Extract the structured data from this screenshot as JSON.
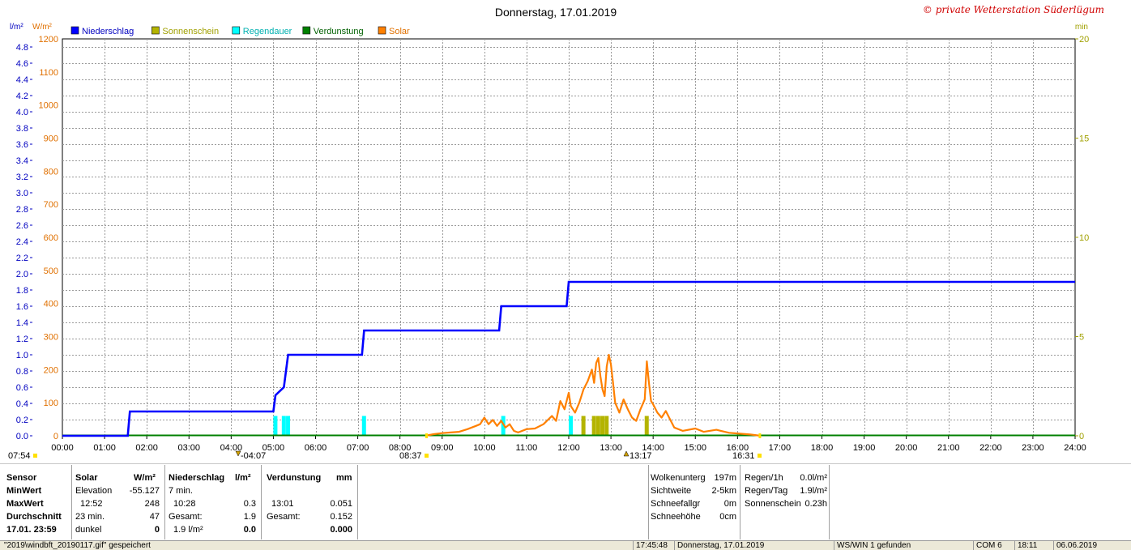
{
  "title": "Donnerstag, 17.01.2019",
  "copyright": "© private Wetterstation Süderlügum",
  "unit_left1": "l/m²",
  "unit_left2": "W/m²",
  "unit_right": "min",
  "legend": [
    {
      "label": "Niederschlag",
      "color": "#0000ff",
      "text_color": "#0000c0"
    },
    {
      "label": "Sonnenschein",
      "color": "#b4b400",
      "text_color": "#a0a000"
    },
    {
      "label": "Regendauer",
      "color": "#00ffff",
      "text_color": "#00b0b0"
    },
    {
      "label": "Verdunstung",
      "color": "#008000",
      "text_color": "#006000"
    },
    {
      "label": "Solar",
      "color": "#ff8000",
      "text_color": "#e07000"
    }
  ],
  "chart_data": {
    "type": "line",
    "x_range": [
      "00:00",
      "24:00"
    ],
    "x_ticks": [
      "00:00",
      "01:00",
      "02:00",
      "03:00",
      "04:00",
      "05:00",
      "06:00",
      "07:00",
      "08:00",
      "09:00",
      "10:00",
      "11:00",
      "12:00",
      "13:00",
      "14:00",
      "15:00",
      "16:00",
      "17:00",
      "18:00",
      "19:00",
      "20:00",
      "21:00",
      "22:00",
      "23:00",
      "24:00"
    ],
    "y_left_rain": {
      "label": "l/m²",
      "range": [
        0,
        4.9
      ],
      "ticks": [
        "0.0",
        "0.2",
        "0.4",
        "0.6",
        "0.8",
        "1.0",
        "1.2",
        "1.4",
        "1.6",
        "1.8",
        "2.0",
        "2.2",
        "2.4",
        "2.6",
        "2.8",
        "3.0",
        "3.2",
        "3.4",
        "3.6",
        "3.8",
        "4.0",
        "4.2",
        "4.4",
        "4.6",
        "4.8"
      ]
    },
    "y_left_solar": {
      "label": "W/m²",
      "range": [
        0,
        1200
      ],
      "ticks": [
        "0",
        "100",
        "200",
        "300",
        "400",
        "500",
        "600",
        "700",
        "800",
        "900",
        "1000",
        "1100",
        "1200"
      ]
    },
    "y_right": {
      "label": "min",
      "range": [
        0,
        20
      ],
      "ticks": [
        "0",
        "5",
        "10",
        "15",
        "20"
      ]
    },
    "grid": true,
    "legend_position": "top-left",
    "series": [
      {
        "name": "Niederschlag",
        "color": "#0000ff",
        "points": [
          [
            0,
            0
          ],
          [
            1.55,
            0
          ],
          [
            1.6,
            0.3
          ],
          [
            5.0,
            0.3
          ],
          [
            5.05,
            0.5
          ],
          [
            5.25,
            0.6
          ],
          [
            5.3,
            0.8
          ],
          [
            5.35,
            1.0
          ],
          [
            5.45,
            1.0
          ],
          [
            7.1,
            1.0
          ],
          [
            7.15,
            1.3
          ],
          [
            10.35,
            1.3
          ],
          [
            10.4,
            1.6
          ],
          [
            11.95,
            1.6
          ],
          [
            12.0,
            1.9
          ],
          [
            24,
            1.9
          ]
        ]
      },
      {
        "name": "Solar",
        "color": "#ff8000",
        "points": [
          [
            8.6,
            0
          ],
          [
            8.8,
            5
          ],
          [
            9.0,
            8
          ],
          [
            9.2,
            10
          ],
          [
            9.4,
            12
          ],
          [
            9.6,
            20
          ],
          [
            9.8,
            30
          ],
          [
            9.9,
            35
          ],
          [
            10.0,
            55
          ],
          [
            10.1,
            35
          ],
          [
            10.2,
            48
          ],
          [
            10.3,
            30
          ],
          [
            10.4,
            45
          ],
          [
            10.5,
            25
          ],
          [
            10.6,
            35
          ],
          [
            10.7,
            15
          ],
          [
            10.8,
            10
          ],
          [
            11.0,
            20
          ],
          [
            11.2,
            22
          ],
          [
            11.4,
            35
          ],
          [
            11.6,
            60
          ],
          [
            11.7,
            45
          ],
          [
            11.8,
            105
          ],
          [
            11.9,
            80
          ],
          [
            12.0,
            130
          ],
          [
            12.05,
            90
          ],
          [
            12.15,
            70
          ],
          [
            12.25,
            100
          ],
          [
            12.35,
            140
          ],
          [
            12.45,
            165
          ],
          [
            12.55,
            200
          ],
          [
            12.6,
            160
          ],
          [
            12.65,
            220
          ],
          [
            12.7,
            235
          ],
          [
            12.75,
            180
          ],
          [
            12.8,
            140
          ],
          [
            12.85,
            120
          ],
          [
            12.9,
            210
          ],
          [
            12.95,
            245
          ],
          [
            13.0,
            215
          ],
          [
            13.05,
            160
          ],
          [
            13.1,
            100
          ],
          [
            13.2,
            70
          ],
          [
            13.3,
            110
          ],
          [
            13.4,
            80
          ],
          [
            13.5,
            55
          ],
          [
            13.6,
            45
          ],
          [
            13.7,
            80
          ],
          [
            13.8,
            110
          ],
          [
            13.85,
            225
          ],
          [
            13.9,
            160
          ],
          [
            13.95,
            105
          ],
          [
            14.0,
            95
          ],
          [
            14.1,
            70
          ],
          [
            14.2,
            55
          ],
          [
            14.3,
            75
          ],
          [
            14.4,
            50
          ],
          [
            14.5,
            25
          ],
          [
            14.7,
            15
          ],
          [
            15.0,
            22
          ],
          [
            15.2,
            12
          ],
          [
            15.5,
            18
          ],
          [
            15.8,
            9
          ],
          [
            16.0,
            7
          ],
          [
            16.3,
            4
          ],
          [
            16.55,
            0
          ]
        ]
      },
      {
        "name": "Regendauer",
        "color": "#00ffff",
        "bars_min": [
          [
            5.0,
            1.0
          ],
          [
            5.2,
            1.0
          ],
          [
            5.3,
            1.0
          ],
          [
            7.1,
            1.0
          ],
          [
            10.4,
            1.0
          ],
          [
            12.0,
            1.0
          ]
        ]
      },
      {
        "name": "Sonnenschein",
        "color": "#b4b400",
        "bars_min": [
          [
            12.3,
            1.0
          ],
          [
            12.55,
            1.0
          ],
          [
            12.65,
            1.0
          ],
          [
            12.75,
            1.0
          ],
          [
            12.85,
            1.0
          ],
          [
            13.8,
            1.0
          ]
        ]
      },
      {
        "name": "Verdunstung",
        "color": "#008000",
        "baseline_only": true
      }
    ],
    "markers": [
      {
        "label": "07:54",
        "time": "07:54",
        "kind": "sunrise"
      },
      {
        "label": "04:07",
        "time": "04:07",
        "kind": "min"
      },
      {
        "label": "08:37",
        "time": "08:37",
        "kind": "sun-start"
      },
      {
        "label": "13:17",
        "time": "13:17",
        "kind": "max"
      },
      {
        "label": "16:31",
        "time": "16:31",
        "kind": "sunset"
      }
    ]
  },
  "table": {
    "col1": {
      "rows": [
        "Sensor",
        "MinWert",
        "MaxWert",
        "Durchschnitt",
        "17.01. 23:59"
      ]
    },
    "solar": {
      "header": "Solar",
      "unit": "W/m²",
      "rows": [
        [
          "Elevation",
          "-55.127"
        ],
        [
          "12:52",
          "248"
        ],
        [
          "23 min.",
          "47"
        ],
        [
          "dunkel",
          "0"
        ]
      ]
    },
    "rain": {
      "header": "Niederschlag",
      "unit": "l/m²",
      "rows": [
        [
          "7 min.",
          ""
        ],
        [
          "10:28",
          "0.3"
        ],
        [
          "Gesamt:",
          "1.9"
        ],
        [
          "1.9 l/m²",
          "0.0"
        ]
      ]
    },
    "evap": {
      "header": "Verdunstung",
      "unit": "mm",
      "rows": [
        [
          "",
          ""
        ],
        [
          "13:01",
          "0.051"
        ],
        [
          "Gesamt:",
          "0.152"
        ],
        [
          "",
          "0.000"
        ]
      ]
    },
    "misc1": [
      [
        "Wolkenunterg",
        "197m"
      ],
      [
        "Sichtweite",
        "2-5km"
      ],
      [
        "Schneefallgr",
        "0m"
      ],
      [
        "Schneehöhe",
        "0cm"
      ]
    ],
    "misc2": [
      [
        "Regen/1h",
        "0.0l/m²"
      ],
      [
        "Regen/Tag",
        "1.9l/m²"
      ],
      [
        "Sonnenschein",
        "0.23h"
      ]
    ]
  },
  "statusbar": {
    "file": "\"2019\\windbft_20190117.gif\" gespeichert",
    "time": "17:45:48",
    "date": "Donnerstag, 17.01.2019",
    "ws": "WS/WIN 1 gefunden",
    "com": "COM 6",
    "clock": "18:11",
    "cdate": "06.06.2019"
  }
}
